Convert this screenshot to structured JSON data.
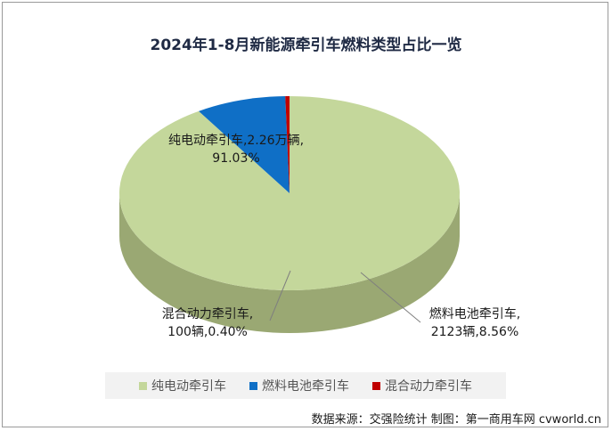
{
  "chart_data": {
    "type": "pie",
    "title": "2024年1-8月新能源牵引车燃料类型占比一览",
    "slices": [
      {
        "name": "纯电动牵引车",
        "value": 91.03,
        "color": "#c4d79b",
        "side_color": "#9aa873",
        "label_line1": "纯电动牵引车,2.26万辆,",
        "label_line2": "91.03%"
      },
      {
        "name": "燃料电池牵引车",
        "value": 8.56,
        "color": "#0f6fc6",
        "side_color": "#0b3f73",
        "label_line1": "燃料电池牵引车,",
        "label_line2": "2123辆,8.56%"
      },
      {
        "name": "混合动力牵引车",
        "value": 0.4,
        "color": "#c00000",
        "side_color": "#7a0000",
        "label_line1": "混合动力牵引车,",
        "label_line2": "100辆,0.40%"
      }
    ],
    "legend": [
      "纯电动牵引车",
      "燃料电池牵引车",
      "混合动力牵引车"
    ],
    "legend_position": "bottom"
  },
  "footer": "数据来源：交强险统计  制图：第一商用车网 cvworld.cn"
}
